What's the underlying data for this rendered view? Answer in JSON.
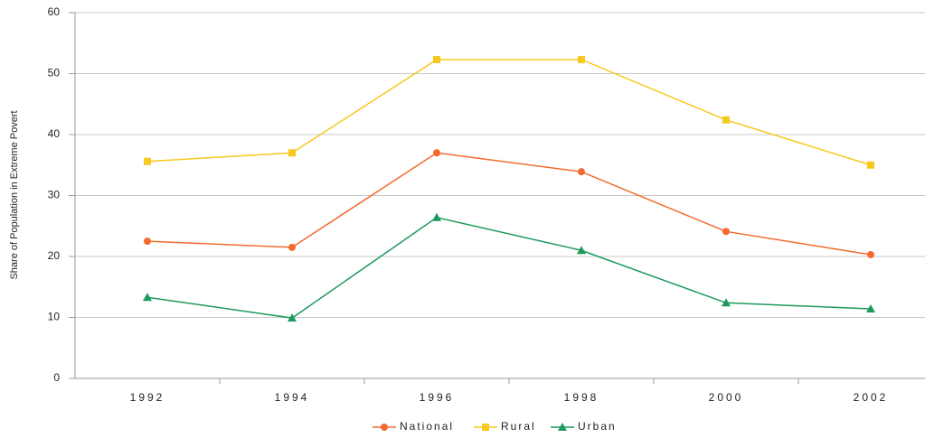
{
  "chart_data": {
    "type": "line",
    "y_label": "Share of Population in Extreme Povert",
    "categories": [
      "1992",
      "1994",
      "1996",
      "1998",
      "2000",
      "2002"
    ],
    "series": [
      {
        "name": "National",
        "color": "#f26a2e",
        "marker": "circle",
        "values": [
          22.5,
          21.5,
          37.0,
          33.9,
          24.1,
          20.3
        ]
      },
      {
        "name": "Rural",
        "color": "#f7c81e",
        "marker": "square",
        "values": [
          35.6,
          37.0,
          52.3,
          52.3,
          42.4,
          35.0
        ]
      },
      {
        "name": "Urban",
        "color": "#1f9a5e",
        "marker": "triangle",
        "values": [
          13.3,
          9.9,
          26.4,
          21.0,
          12.4,
          11.4
        ]
      }
    ],
    "ylim": [
      0,
      60
    ],
    "yticks": [
      0,
      10,
      20,
      30,
      40,
      50,
      60
    ],
    "grid": true,
    "legend": "bottom"
  }
}
